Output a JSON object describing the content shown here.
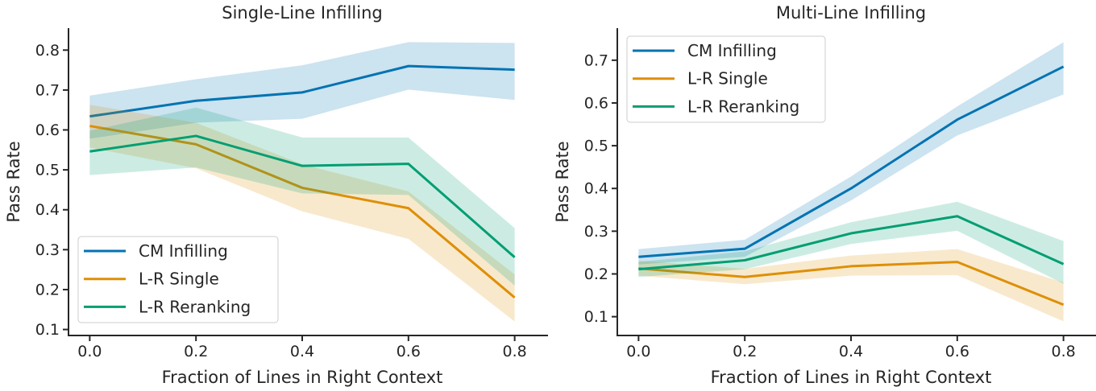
{
  "figure": {
    "background": "#ffffff",
    "text_color": "#262626",
    "axis_color": "#262626",
    "band_opacity": 0.2
  },
  "chart_data": [
    {
      "type": "line",
      "title": "Single-Line Infilling",
      "xlabel": "Fraction of Lines in Right Context",
      "ylabel": "Pass Rate",
      "x": [
        0.0,
        0.2,
        0.4,
        0.6,
        0.8
      ],
      "xtick_labels": [
        "0.0",
        "0.2",
        "0.4",
        "0.6",
        "0.8"
      ],
      "ytick_labels": [
        "0.1",
        "0.2",
        "0.3",
        "0.4",
        "0.5",
        "0.6",
        "0.7",
        "0.8"
      ],
      "xlim": [
        -0.04,
        0.84
      ],
      "ylim": [
        0.085,
        0.855
      ],
      "grid": false,
      "legend_position": "lower left",
      "series": [
        {
          "name": "CM Infilling",
          "color": "#0173b2",
          "values": [
            0.634,
            0.673,
            0.694,
            0.76,
            0.751
          ],
          "band_low": [
            0.578,
            0.618,
            0.628,
            0.701,
            0.675
          ],
          "band_high": [
            0.686,
            0.727,
            0.762,
            0.82,
            0.818
          ]
        },
        {
          "name": "L-R Single",
          "color": "#de8f05",
          "values": [
            0.61,
            0.564,
            0.455,
            0.404,
            0.18
          ],
          "band_low": [
            0.556,
            0.504,
            0.396,
            0.327,
            0.12
          ],
          "band_high": [
            0.663,
            0.618,
            0.514,
            0.446,
            0.238
          ]
        },
        {
          "name": "L-R Reranking",
          "color": "#029e73",
          "values": [
            0.546,
            0.585,
            0.51,
            0.515,
            0.281
          ],
          "band_low": [
            0.487,
            0.506,
            0.441,
            0.437,
            0.21
          ],
          "band_high": [
            0.598,
            0.656,
            0.581,
            0.581,
            0.354
          ]
        }
      ]
    },
    {
      "type": "line",
      "title": "Multi-Line Infilling",
      "xlabel": "Fraction of Lines in Right Context",
      "ylabel": "Pass Rate",
      "x": [
        0.0,
        0.2,
        0.4,
        0.6,
        0.8
      ],
      "xtick_labels": [
        "0.0",
        "0.2",
        "0.4",
        "0.6",
        "0.8"
      ],
      "ytick_labels": [
        "0.1",
        "0.2",
        "0.3",
        "0.4",
        "0.5",
        "0.6",
        "0.7"
      ],
      "xlim": [
        -0.04,
        0.84
      ],
      "ylim": [
        0.056,
        0.775
      ],
      "grid": false,
      "legend_position": "upper left",
      "series": [
        {
          "name": "CM Infilling",
          "color": "#0173b2",
          "values": [
            0.24,
            0.259,
            0.4,
            0.561,
            0.685
          ],
          "band_low": [
            0.222,
            0.24,
            0.372,
            0.524,
            0.62
          ],
          "band_high": [
            0.258,
            0.28,
            0.428,
            0.592,
            0.742
          ]
        },
        {
          "name": "L-R Single",
          "color": "#de8f05",
          "values": [
            0.213,
            0.193,
            0.218,
            0.228,
            0.128
          ],
          "band_low": [
            0.196,
            0.176,
            0.196,
            0.197,
            0.089
          ],
          "band_high": [
            0.231,
            0.212,
            0.243,
            0.258,
            0.18
          ]
        },
        {
          "name": "L-R Reranking",
          "color": "#029e73",
          "values": [
            0.211,
            0.232,
            0.295,
            0.335,
            0.223
          ],
          "band_low": [
            0.193,
            0.211,
            0.27,
            0.301,
            0.177
          ],
          "band_high": [
            0.228,
            0.253,
            0.321,
            0.369,
            0.277
          ]
        }
      ]
    }
  ]
}
